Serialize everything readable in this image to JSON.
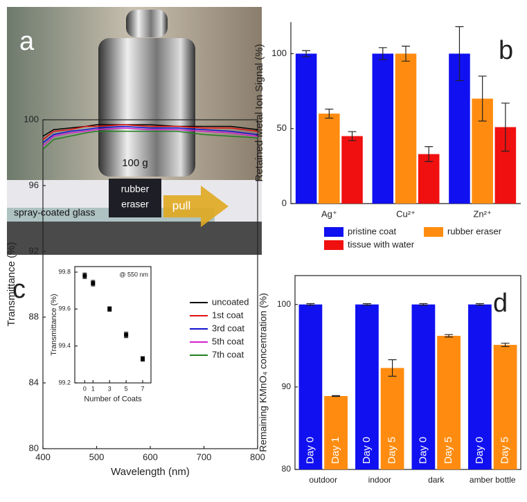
{
  "photo": {
    "label": "a",
    "weight": "100 g",
    "eraser": [
      "rubber",
      "eraser"
    ],
    "arrow": "pull",
    "glass": "spray-coated glass"
  },
  "chart_data": [
    {
      "type": "bar",
      "panel": "b",
      "ylabel": "Retained Metal Ion Signal (%)",
      "categories": [
        "Ag⁺",
        "Cu²⁺",
        "Zn²⁺"
      ],
      "series": [
        {
          "name": "pristine coat",
          "color": "#1010f0",
          "values": [
            100,
            100,
            100
          ],
          "errors": [
            2,
            4,
            18
          ]
        },
        {
          "name": "rubber eraser",
          "color": "#ff8c10",
          "values": [
            60,
            100,
            70
          ],
          "errors": [
            3,
            5,
            15
          ]
        },
        {
          "name": "tissue with water",
          "color": "#f01010",
          "values": [
            45,
            33,
            51
          ],
          "errors": [
            3,
            5,
            16
          ]
        }
      ],
      "ylim": [
        0,
        121
      ],
      "yticks": [
        0,
        50,
        100
      ],
      "legend": "bottom",
      "frame": false
    },
    {
      "type": "line",
      "panel": "c",
      "xlabel": "Wavelength (nm)",
      "ylabel": "Transmittance (%)",
      "x": [
        400,
        420,
        450,
        480,
        500,
        550,
        600,
        650,
        700,
        750,
        800
      ],
      "series": [
        {
          "name": "uncoated",
          "color": "#000000",
          "values": [
            99.0,
            99.4,
            99.5,
            99.6,
            99.7,
            99.7,
            99.7,
            99.6,
            99.6,
            99.6,
            99.4
          ]
        },
        {
          "name": "1st coat",
          "color": "#e01010",
          "values": [
            98.8,
            99.3,
            99.4,
            99.6,
            99.6,
            99.7,
            99.6,
            99.6,
            99.5,
            99.5,
            99.3
          ]
        },
        {
          "name": "3rd coat",
          "color": "#1010d0",
          "values": [
            98.6,
            99.1,
            99.3,
            99.4,
            99.5,
            99.6,
            99.5,
            99.5,
            99.4,
            99.3,
            99.1
          ]
        },
        {
          "name": "5th coat",
          "color": "#d020d0",
          "values": [
            98.4,
            99.0,
            99.2,
            99.3,
            99.4,
            99.5,
            99.4,
            99.4,
            99.3,
            99.2,
            99.0
          ]
        },
        {
          "name": "7th coat",
          "color": "#208020",
          "values": [
            98.2,
            98.8,
            99.0,
            99.2,
            99.3,
            99.3,
            99.3,
            99.3,
            99.1,
            99.0,
            98.9
          ]
        }
      ],
      "xlim": [
        400,
        800
      ],
      "xticks": [
        400,
        500,
        600,
        700,
        800
      ],
      "ylim": [
        80,
        100
      ],
      "yticks": [
        80,
        84,
        88,
        92,
        96,
        100
      ],
      "legend": "right",
      "frame": true
    },
    {
      "type": "scatter",
      "xlabel": "Number of Coats",
      "ylabel": "Transmittance (%)",
      "annotation": "@ 550 nm",
      "x": [
        0,
        1,
        3,
        5,
        7
      ],
      "values": [
        99.78,
        99.74,
        99.6,
        99.46,
        99.33
      ],
      "errors": [
        0.015,
        0.015,
        0.012,
        0.015,
        0.012
      ],
      "color": "#000000",
      "xlim": [
        -1.2,
        8
      ],
      "xticks": [
        0,
        1,
        3,
        5,
        7
      ],
      "ylim": [
        99.2,
        99.83
      ],
      "yticks": [
        99.2,
        99.4,
        99.6,
        99.8
      ],
      "frame": true
    },
    {
      "type": "bar",
      "panel": "d",
      "ylabel": "Remaining KMnO₄ concentration (%)",
      "categories": [
        "outdoor",
        "indoor",
        "dark",
        "amber bottle"
      ],
      "series": [
        {
          "color": "#1010f0",
          "values": [
            100,
            100,
            100,
            100
          ],
          "errors": [
            0.1,
            0.1,
            0.1,
            0.1
          ],
          "labels": [
            "Day 0",
            "Day 0",
            "Day 0",
            "Day 0"
          ]
        },
        {
          "color": "#ff8c10",
          "values": [
            88.9,
            92.3,
            96.2,
            95.1
          ],
          "errors": [
            0.05,
            1.0,
            0.15,
            0.2
          ],
          "labels": [
            "Day 1",
            "Day 5",
            "Day 5",
            "Day 5"
          ]
        }
      ],
      "ylim": [
        80,
        103.5
      ],
      "yticks": [
        80,
        90,
        100
      ],
      "frame": true
    }
  ]
}
